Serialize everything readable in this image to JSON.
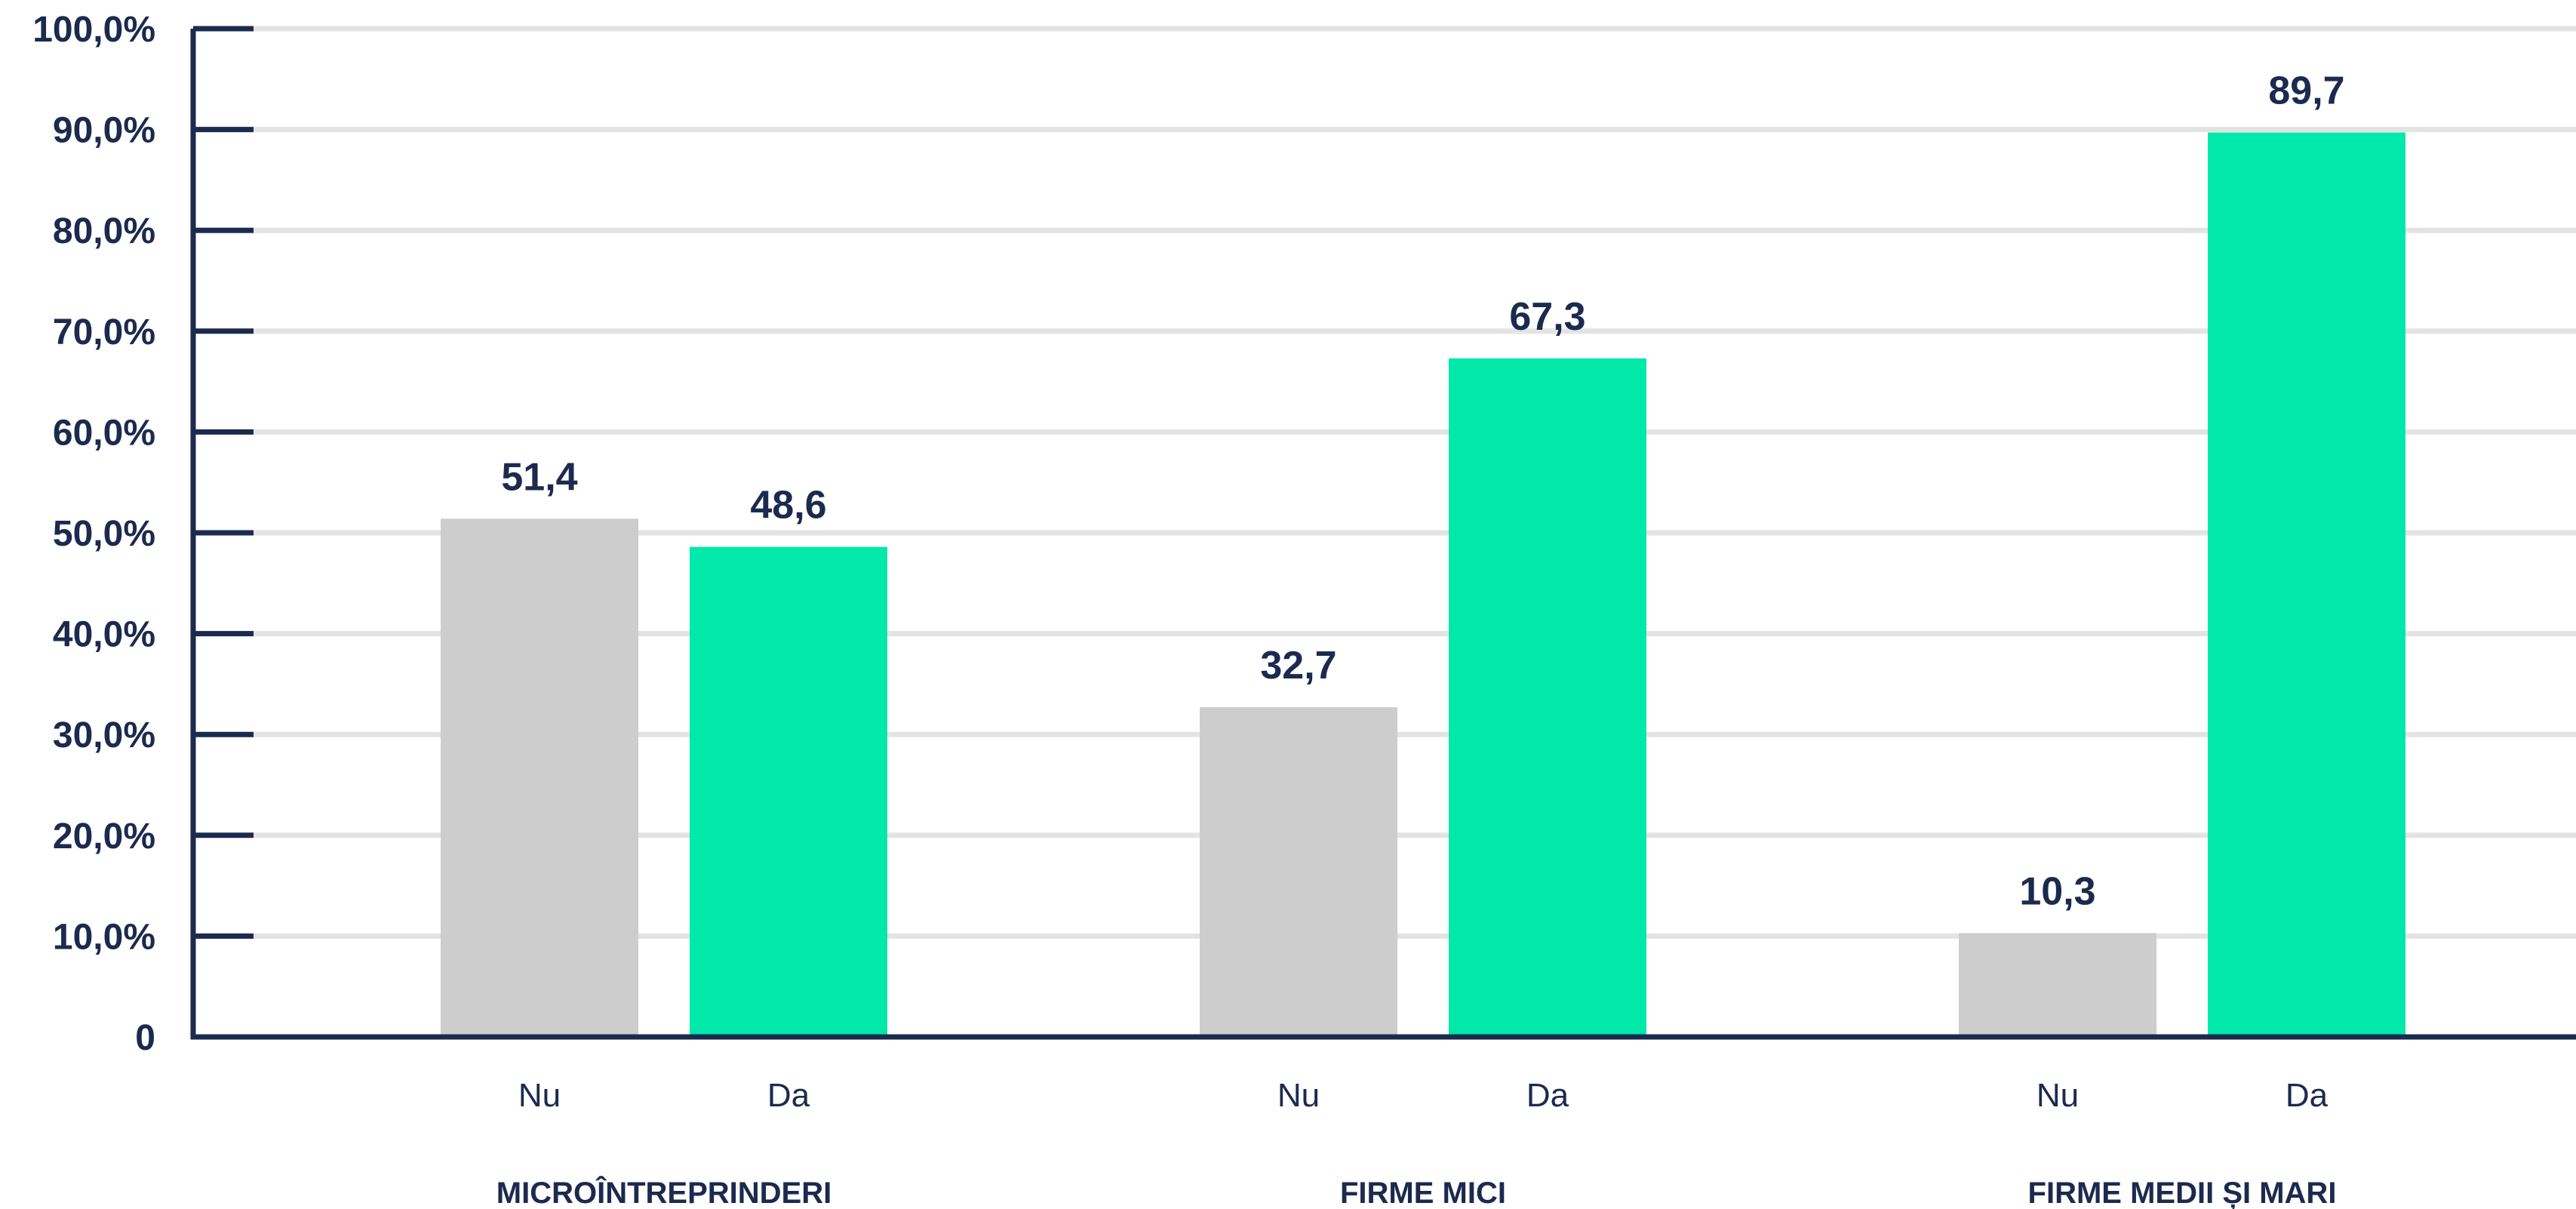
{
  "colors": {
    "axis": "#1b2a4e",
    "text": "#1b2a4e",
    "grid": "#e3e3e3",
    "nu": "#cdcdcd",
    "da": "#00e8aa"
  },
  "chart_data": {
    "type": "bar",
    "title": "",
    "xlabel": "",
    "ylabel": "",
    "ylim": [
      0,
      100
    ],
    "yticks": [
      0,
      10,
      20,
      30,
      40,
      50,
      60,
      70,
      80,
      90,
      100
    ],
    "ytick_labels": [
      "0",
      "10,0%",
      "20,0%",
      "30,0%",
      "40,0%",
      "50,0%",
      "60,0%",
      "70,0%",
      "80,0%",
      "90,0%",
      "100,0%"
    ],
    "grid": true,
    "legend": false,
    "categories": [
      "MICROÎNTREPRINDERI",
      "FIRME MICI",
      "FIRME MEDII ȘI MARI"
    ],
    "series": [
      {
        "name": "Nu",
        "values": [
          51.4,
          32.7,
          10.3
        ],
        "labels": [
          "51,4",
          "32,7",
          "10,3"
        ]
      },
      {
        "name": "Da",
        "values": [
          48.6,
          67.3,
          89.7
        ],
        "labels": [
          "48,6",
          "67,3",
          "89,7"
        ]
      }
    ]
  }
}
